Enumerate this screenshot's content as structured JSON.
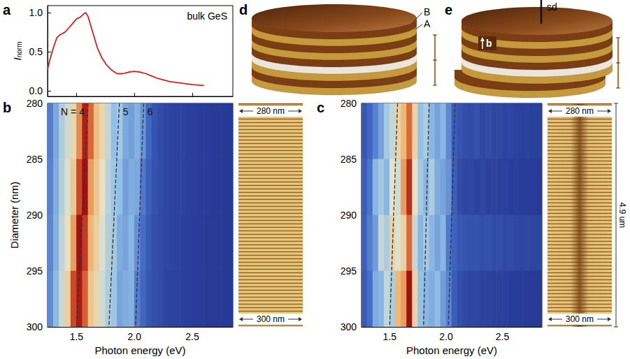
{
  "chart_data": [
    {
      "panel": "a",
      "type": "line",
      "annotation": "bulk GeS",
      "ylabel": "Inorm",
      "x": [
        1.25,
        1.27,
        1.3,
        1.33,
        1.36,
        1.4,
        1.43,
        1.46,
        1.5,
        1.53,
        1.56,
        1.58,
        1.6,
        1.62,
        1.65,
        1.68,
        1.72,
        1.76,
        1.8,
        1.85,
        1.9,
        1.95,
        2.0,
        2.05,
        2.1,
        2.15,
        2.2,
        2.3,
        2.4,
        2.5,
        2.6
      ],
      "values": [
        0.27,
        0.4,
        0.55,
        0.68,
        0.72,
        0.75,
        0.8,
        0.85,
        0.92,
        0.94,
        0.98,
        1.0,
        0.95,
        0.85,
        0.7,
        0.55,
        0.42,
        0.33,
        0.27,
        0.22,
        0.22,
        0.24,
        0.25,
        0.24,
        0.22,
        0.19,
        0.16,
        0.12,
        0.1,
        0.08,
        0.07
      ],
      "color": "#d62020",
      "xlim": [
        1.25,
        2.85
      ],
      "ylim": [
        -0.07,
        1.09
      ],
      "xticks": [
        1.5,
        {
          "value": 2,
          "label": "2.0"
        },
        2.5
      ],
      "yticks": [
        {
          "value": 0,
          "label": "0.0"
        },
        0.5,
        {
          "value": 1,
          "label": "1.0"
        }
      ],
      "tick_labels": "y"
    },
    {
      "panel": "b",
      "type": "heatmap",
      "xlabel": "Photon energy (eV)",
      "ylabel": "Diameter (nm)",
      "x": [
        1.275,
        1.325,
        1.375,
        1.425,
        1.475,
        1.525,
        1.575,
        1.625,
        1.675,
        1.725,
        1.775,
        1.825,
        1.875,
        1.925,
        1.975,
        2.025,
        2.075,
        2.125,
        2.175,
        2.225,
        2.275,
        2.325,
        2.375,
        2.425,
        2.475,
        2.525,
        2.575,
        2.625,
        2.675,
        2.725,
        2.775,
        2.825
      ],
      "y": [
        282.5,
        287.5,
        292.5,
        297.5
      ],
      "values": [
        [
          0.33,
          0.42,
          0.52,
          0.58,
          0.66,
          0.8,
          0.97,
          0.85,
          0.72,
          0.66,
          0.56,
          0.47,
          0.5,
          0.42,
          0.4,
          0.44,
          0.38,
          0.27,
          0.2,
          0.17,
          0.15,
          0.14,
          0.13,
          0.13,
          0.12,
          0.12,
          0.11,
          0.11,
          0.1,
          0.1,
          0.1,
          0.1
        ],
        [
          0.34,
          0.43,
          0.53,
          0.6,
          0.7,
          0.9,
          1.0,
          0.78,
          0.7,
          0.63,
          0.54,
          0.49,
          0.47,
          0.4,
          0.43,
          0.42,
          0.32,
          0.24,
          0.19,
          0.17,
          0.15,
          0.14,
          0.13,
          0.13,
          0.12,
          0.12,
          0.11,
          0.11,
          0.1,
          0.1,
          0.1,
          0.1
        ],
        [
          0.35,
          0.44,
          0.55,
          0.63,
          0.78,
          1.0,
          0.92,
          0.74,
          0.68,
          0.6,
          0.53,
          0.5,
          0.43,
          0.41,
          0.45,
          0.37,
          0.29,
          0.22,
          0.18,
          0.16,
          0.15,
          0.14,
          0.13,
          0.12,
          0.12,
          0.11,
          0.11,
          0.1,
          0.1,
          0.1,
          0.1,
          0.1
        ],
        [
          0.36,
          0.46,
          0.57,
          0.68,
          0.9,
          0.98,
          0.86,
          0.7,
          0.66,
          0.58,
          0.52,
          0.49,
          0.41,
          0.43,
          0.44,
          0.33,
          0.27,
          0.21,
          0.18,
          0.16,
          0.14,
          0.13,
          0.13,
          0.12,
          0.12,
          0.11,
          0.11,
          0.1,
          0.1,
          0.1,
          0.1,
          0.1
        ]
      ],
      "xlim": [
        1.25,
        2.85
      ],
      "ylim": [
        300,
        280
      ],
      "xticks": [
        1.5,
        {
          "value": 2,
          "label": "2.0"
        },
        2.5
      ],
      "yticks": [
        280,
        285,
        290,
        295,
        300
      ],
      "lines": [
        {
          "label": "N = 4",
          "x": [
            1.6,
            1.5
          ],
          "y": [
            280,
            300
          ]
        },
        {
          "label": "5",
          "x": [
            1.87,
            1.78
          ],
          "y": [
            280,
            300
          ]
        },
        {
          "label": "6",
          "x": [
            2.08,
            2.01
          ],
          "y": [
            280,
            300
          ]
        }
      ],
      "line_style": "dashed",
      "inset": {
        "top_label": "280 nm",
        "bottom_label": "300 nm"
      }
    },
    {
      "panel": "c",
      "type": "heatmap",
      "xlabel": "Photon energy (eV)",
      "x": [
        1.275,
        1.325,
        1.375,
        1.425,
        1.475,
        1.525,
        1.575,
        1.625,
        1.675,
        1.725,
        1.775,
        1.825,
        1.875,
        1.925,
        1.975,
        2.025,
        2.075,
        2.125,
        2.175,
        2.225,
        2.275,
        2.325,
        2.375,
        2.425,
        2.475,
        2.525,
        2.575,
        2.625,
        2.675,
        2.725,
        2.775,
        2.825
      ],
      "y": [
        282.5,
        287.5,
        292.5,
        297.5
      ],
      "values": [
        [
          0.28,
          0.33,
          0.4,
          0.46,
          0.55,
          0.6,
          0.7,
          0.76,
          0.86,
          0.7,
          0.52,
          0.56,
          0.5,
          0.46,
          0.5,
          0.41,
          0.3,
          0.27,
          0.25,
          0.24,
          0.26,
          0.23,
          0.24,
          0.22,
          0.23,
          0.21,
          0.22,
          0.21,
          0.2,
          0.21,
          0.2,
          0.2
        ],
        [
          0.3,
          0.37,
          0.5,
          0.55,
          0.5,
          0.66,
          0.62,
          0.8,
          0.95,
          0.66,
          0.55,
          0.5,
          0.56,
          0.48,
          0.46,
          0.43,
          0.31,
          0.24,
          0.22,
          0.23,
          0.21,
          0.22,
          0.2,
          0.21,
          0.2,
          0.2,
          0.19,
          0.2,
          0.19,
          0.19,
          0.19,
          0.18
        ],
        [
          0.31,
          0.39,
          0.45,
          0.6,
          0.56,
          0.7,
          0.64,
          0.7,
          0.86,
          0.6,
          0.5,
          0.55,
          0.5,
          0.46,
          0.5,
          0.38,
          0.32,
          0.28,
          0.27,
          0.26,
          0.27,
          0.25,
          0.26,
          0.24,
          0.25,
          0.23,
          0.24,
          0.23,
          0.22,
          0.23,
          0.22,
          0.22
        ],
        [
          0.29,
          0.36,
          0.48,
          0.5,
          0.6,
          0.56,
          0.76,
          0.8,
          1.0,
          0.7,
          0.52,
          0.5,
          0.48,
          0.51,
          0.45,
          0.4,
          0.3,
          0.25,
          0.23,
          0.22,
          0.22,
          0.21,
          0.21,
          0.2,
          0.2,
          0.2,
          0.19,
          0.19,
          0.19,
          0.18,
          0.18,
          0.18
        ]
      ],
      "xlim": [
        1.25,
        2.85
      ],
      "ylim": [
        300,
        280
      ],
      "xticks": [
        1.5,
        {
          "value": 2,
          "label": "2.0"
        },
        2.5
      ],
      "yticks": [
        280,
        285,
        290,
        295,
        300
      ],
      "lines": [
        {
          "x": [
            1.57,
            1.5
          ],
          "y": [
            280,
            300
          ]
        },
        {
          "x": [
            1.85,
            1.8
          ],
          "y": [
            280,
            300
          ]
        },
        {
          "x": [
            2.08,
            2.02
          ],
          "y": [
            280,
            300
          ]
        }
      ],
      "line_style": "dashed",
      "inset": {
        "top_label": "280 nm",
        "bottom_label": "300 nm",
        "height_label": "4.9 um"
      }
    }
  ],
  "diagrams": [
    {
      "panel": "d",
      "labels": [
        "B",
        "A"
      ]
    },
    {
      "panel": "e",
      "labels": [
        "sd",
        "b"
      ]
    }
  ]
}
